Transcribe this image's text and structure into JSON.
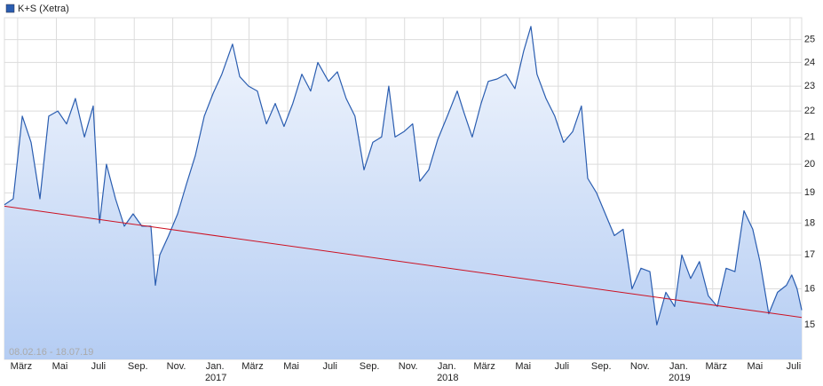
{
  "chart_data": {
    "type": "line",
    "date_range": "08.02.16 - 18.07.19",
    "log_scale": true,
    "grid": true,
    "xlim": [
      2016.107,
      2019.546
    ],
    "ylim": [
      14.1,
      26.0
    ],
    "yticks": [
      15,
      16,
      17,
      18,
      19,
      20,
      21,
      22,
      23,
      24,
      25
    ],
    "xticks": [
      {
        "value": 2016.164,
        "label": "März"
      },
      {
        "value": 2016.331,
        "label": "Mai"
      },
      {
        "value": 2016.497,
        "label": "Juli"
      },
      {
        "value": 2016.667,
        "label": "Sep."
      },
      {
        "value": 2016.833,
        "label": "Nov."
      },
      {
        "value": 2017.0,
        "label": "Jan."
      },
      {
        "value": 2017.162,
        "label": "März"
      },
      {
        "value": 2017.329,
        "label": "Mai"
      },
      {
        "value": 2017.496,
        "label": "Juli"
      },
      {
        "value": 2017.666,
        "label": "Sep."
      },
      {
        "value": 2017.833,
        "label": "Nov."
      },
      {
        "value": 2018.0,
        "label": "Jan."
      },
      {
        "value": 2018.162,
        "label": "März"
      },
      {
        "value": 2018.329,
        "label": "Mai"
      },
      {
        "value": 2018.496,
        "label": "Juli"
      },
      {
        "value": 2018.666,
        "label": "Sep."
      },
      {
        "value": 2018.833,
        "label": "Nov."
      },
      {
        "value": 2019.0,
        "label": "Jan."
      },
      {
        "value": 2019.162,
        "label": "März"
      },
      {
        "value": 2019.329,
        "label": "Mai"
      },
      {
        "value": 2019.496,
        "label": "Juli"
      }
    ],
    "year_ticks": [
      2017,
      2018,
      2019
    ],
    "series": [
      {
        "name": "K+S (Xetra)",
        "color": "#2a5db0",
        "x": [
          2016.107,
          2016.145,
          2016.184,
          2016.222,
          2016.26,
          2016.298,
          2016.337,
          2016.375,
          2016.413,
          2016.452,
          2016.49,
          2016.517,
          2016.547,
          2016.586,
          2016.624,
          2016.662,
          2016.7,
          2016.739,
          2016.758,
          2016.777,
          2016.815,
          2016.854,
          2016.892,
          2016.93,
          2016.969,
          2017.007,
          2017.045,
          2017.091,
          2017.122,
          2017.16,
          2017.198,
          2017.237,
          2017.275,
          2017.313,
          2017.351,
          2017.39,
          2017.428,
          2017.459,
          2017.505,
          2017.543,
          2017.581,
          2017.619,
          2017.658,
          2017.696,
          2017.734,
          2017.765,
          2017.792,
          2017.83,
          2017.868,
          2017.899,
          2017.937,
          2017.976,
          2018.022,
          2018.06,
          2018.087,
          2018.125,
          2018.163,
          2018.194,
          2018.232,
          2018.27,
          2018.309,
          2018.347,
          2018.378,
          2018.404,
          2018.443,
          2018.481,
          2018.519,
          2018.558,
          2018.596,
          2018.623,
          2018.661,
          2018.699,
          2018.738,
          2018.776,
          2018.814,
          2018.853,
          2018.891,
          2018.921,
          2018.96,
          2018.998,
          2019.029,
          2019.067,
          2019.105,
          2019.143,
          2019.182,
          2019.22,
          2019.258,
          2019.297,
          2019.335,
          2019.366,
          2019.404,
          2019.442,
          2019.48,
          2019.503,
          2019.526,
          2019.546
        ],
        "values": [
          18.6,
          18.8,
          21.8,
          20.8,
          18.8,
          21.8,
          22.0,
          21.5,
          22.5,
          21.0,
          22.2,
          18.0,
          20.0,
          18.8,
          17.9,
          18.3,
          17.9,
          17.9,
          16.1,
          17.0,
          17.6,
          18.3,
          19.3,
          20.3,
          21.8,
          22.7,
          23.5,
          24.8,
          23.4,
          23.0,
          22.8,
          21.5,
          22.3,
          21.4,
          22.3,
          23.5,
          22.8,
          24.0,
          23.2,
          23.6,
          22.5,
          21.8,
          19.8,
          20.8,
          21.0,
          23.0,
          21.0,
          21.2,
          21.5,
          19.4,
          19.8,
          20.9,
          21.9,
          22.8,
          22.0,
          21.0,
          22.3,
          23.2,
          23.3,
          23.5,
          22.9,
          24.5,
          25.6,
          23.5,
          22.5,
          21.8,
          20.8,
          21.2,
          22.2,
          19.5,
          19.0,
          18.3,
          17.6,
          17.8,
          16.0,
          16.6,
          16.5,
          15.0,
          15.9,
          15.5,
          17.0,
          16.3,
          16.8,
          15.8,
          15.5,
          16.6,
          16.5,
          18.4,
          17.8,
          16.8,
          15.3,
          15.9,
          16.1,
          16.4,
          16.0,
          15.4
        ]
      }
    ],
    "trend": {
      "color": "#cc1122",
      "x": [
        2016.107,
        2019.546
      ],
      "values": [
        18.55,
        15.2
      ]
    }
  }
}
